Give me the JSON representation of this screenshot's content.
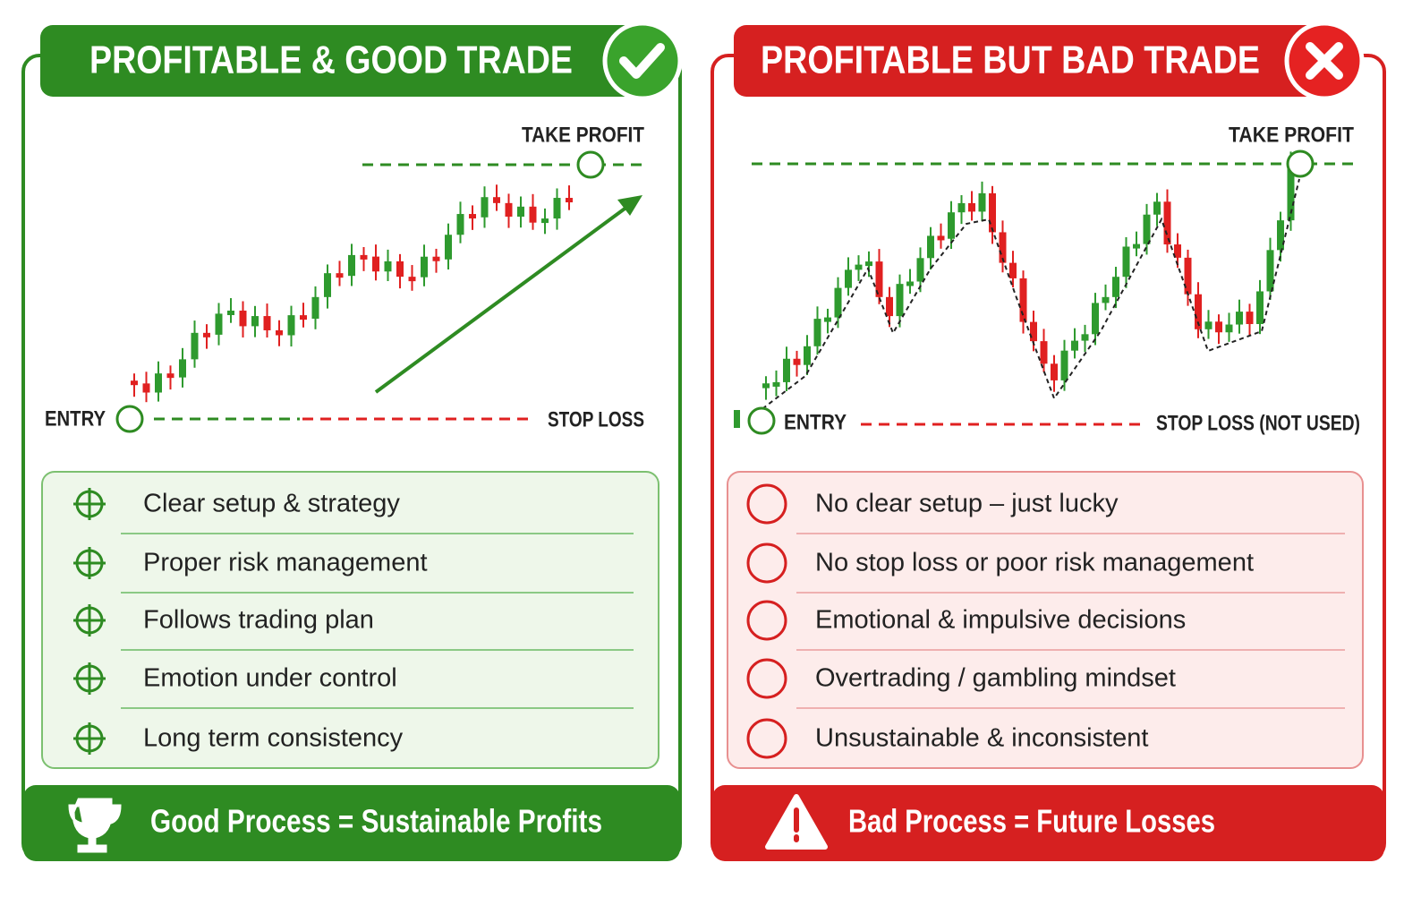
{
  "panels": [
    {
      "title": "PROFITABLE & GOOD TRADE",
      "chart": {
        "take_profit": "TAKE PROFIT",
        "entry": "ENTRY",
        "stop_loss": "STOP LOSS"
      },
      "items": [
        "Clear setup & strategy",
        "Proper risk management",
        "Follows trading plan",
        "Emotion under control",
        "Long term consistency"
      ],
      "footer": "Good Process = Sustainable Profits"
    },
    {
      "title": "PROFITABLE BUT BAD TRADE",
      "chart": {
        "take_profit": "TAKE PROFIT",
        "entry": "ENTRY",
        "stop_loss": "STOP LOSS (NOT USED)"
      },
      "items": [
        "No clear setup – just lucky",
        "No stop loss or poor risk management",
        "Emotional & impulsive decisions",
        "Overtrading / gambling mindset",
        "Unsustainable & inconsistent"
      ],
      "footer": "Bad Process = Future Losses"
    }
  ]
}
